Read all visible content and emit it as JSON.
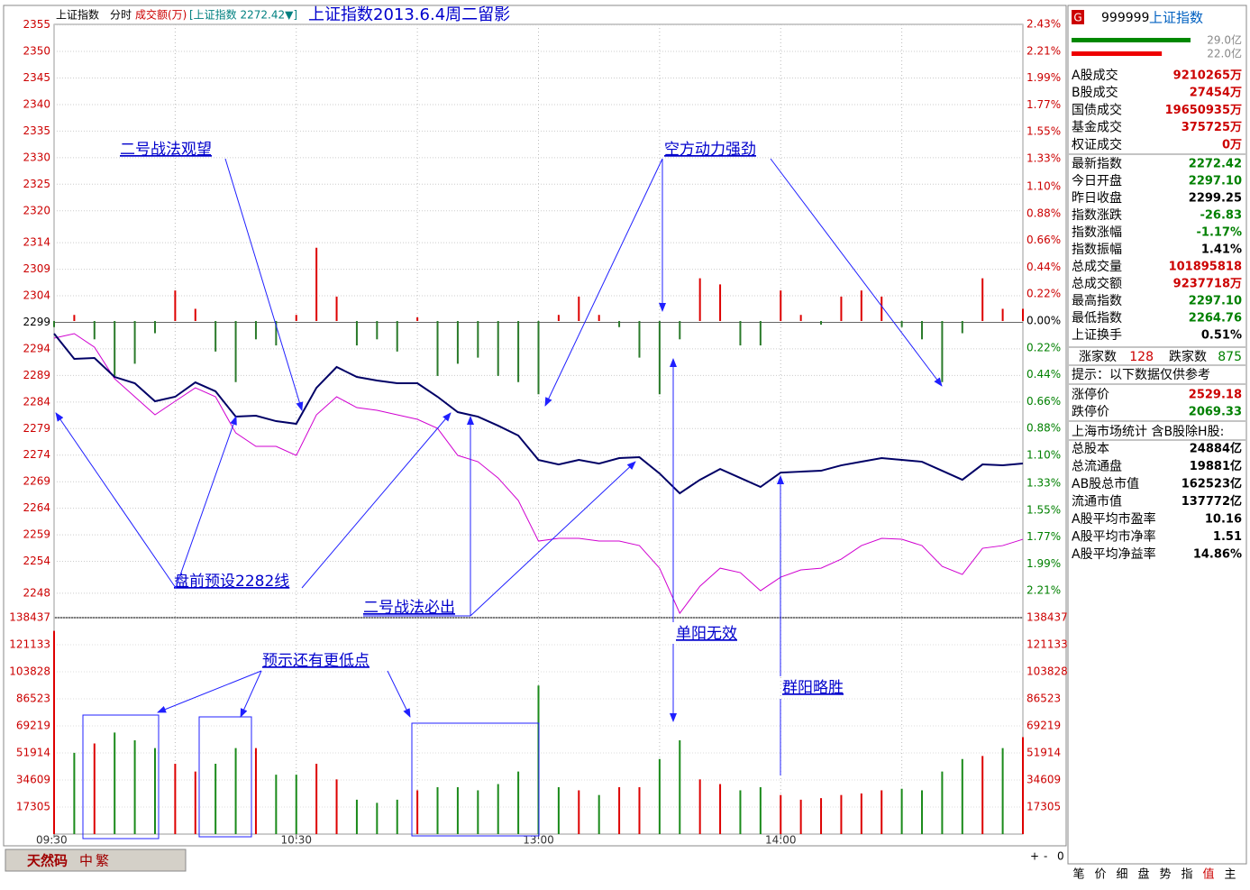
{
  "header": {
    "labels": [
      "上证指数",
      "分时",
      "成交额(万)"
    ],
    "quote": "[上证指数 2272.42▼]",
    "title": "上证指数2013.6.4周二留影"
  },
  "chart": {
    "type": "intraday",
    "xlim": [
      0,
      48
    ],
    "xticks": [
      {
        "value": 0,
        "label": "09:30"
      },
      {
        "value": 12,
        "label": "10:30"
      },
      {
        "value": 24,
        "label": "13:00"
      },
      {
        "value": 36,
        "label": "14:00"
      }
    ],
    "ylim": [
      2243.4,
      2355.1
    ],
    "yticks": [
      2355,
      2350,
      2345,
      2340,
      2335,
      2330,
      2325,
      2320,
      2314,
      2309,
      2304,
      2299,
      2294,
      2289,
      2284,
      2279,
      2274,
      2269,
      2264,
      2259,
      2254,
      2248
    ],
    "y2lim": [
      -2.43,
      2.43
    ],
    "y2ticks": [
      {
        "value": 2.43,
        "label": "2.43%"
      },
      {
        "value": 2.21,
        "label": "2.21%"
      },
      {
        "value": 1.99,
        "label": "1.99%"
      },
      {
        "value": 1.77,
        "label": "1.77%"
      },
      {
        "value": 1.55,
        "label": "1.55%"
      },
      {
        "value": 1.33,
        "label": "1.33%"
      },
      {
        "value": 1.1,
        "label": "1.10%"
      },
      {
        "value": 0.88,
        "label": "0.88%"
      },
      {
        "value": 0.66,
        "label": "0.66%"
      },
      {
        "value": 0.44,
        "label": "0.44%"
      },
      {
        "value": 0.22,
        "label": "0.22%"
      },
      {
        "value": 0,
        "label": "0.00%"
      },
      {
        "value": -0.22,
        "label": "0.22%"
      },
      {
        "value": -0.44,
        "label": "0.44%"
      },
      {
        "value": -0.66,
        "label": "0.66%"
      },
      {
        "value": -0.88,
        "label": "0.88%"
      },
      {
        "value": -1.1,
        "label": "1.10%"
      },
      {
        "value": -1.33,
        "label": "1.33%"
      },
      {
        "value": -1.55,
        "label": "1.55%"
      },
      {
        "value": -1.77,
        "label": "1.77%"
      },
      {
        "value": -1.99,
        "label": "1.99%"
      },
      {
        "value": -2.21,
        "label": "2.21%"
      }
    ],
    "vlim": [
      0,
      138437
    ],
    "vticks": [
      138437,
      121133,
      103828,
      86523,
      69219,
      51914,
      34609,
      17305
    ],
    "price": {
      "color": "#000066",
      "values": [
        2296.87,
        2292.12,
        2292.29,
        2288.72,
        2287.53,
        2284.14,
        2284.99,
        2287.7,
        2286.01,
        2281.25,
        2281.42,
        2280.4,
        2279.89,
        2286.68,
        2290.59,
        2288.72,
        2288.04,
        2287.53,
        2287.53,
        2284.99,
        2282.1,
        2281.25,
        2279.55,
        2277.69,
        2273.1,
        2272.25,
        2273.1,
        2272.42,
        2273.44,
        2273.61,
        2270.55,
        2266.82,
        2269.36,
        2271.4,
        2269.7,
        2268.01,
        2270.72,
        2270.89,
        2271.06,
        2272.08,
        2272.76,
        2273.44,
        2273.1,
        2272.76,
        2271.06,
        2269.36,
        2272.25,
        2272.08,
        2272.42
      ]
    },
    "average": {
      "color": "#d000d0",
      "values": [
        2296.02,
        2296.87,
        2294.33,
        2288.38,
        2284.99,
        2281.59,
        2284.14,
        2286.68,
        2284.99,
        2278.19,
        2275.65,
        2275.65,
        2273.95,
        2281.59,
        2284.99,
        2282.95,
        2282.44,
        2281.59,
        2280.74,
        2279.04,
        2273.95,
        2272.76,
        2269.7,
        2265.46,
        2257.82,
        2258.33,
        2258.33,
        2257.82,
        2257.82,
        2256.97,
        2252.72,
        2244.23,
        2249.33,
        2252.72,
        2251.88,
        2248.48,
        2251.03,
        2252.39,
        2252.72,
        2254.42,
        2256.97,
        2258.33,
        2258.16,
        2256.97,
        2253.06,
        2251.54,
        2256.46,
        2256.97,
        2258.16
      ]
    },
    "strength": [
      -0.05,
      0.05,
      -0.15,
      -0.45,
      -0.35,
      -0.1,
      0.25,
      0.1,
      -0.25,
      -0.5,
      -0.15,
      -0.2,
      0.05,
      0.6,
      0.2,
      -0.2,
      -0.15,
      -0.25,
      0.03,
      -0.45,
      -0.35,
      -0.3,
      -0.45,
      -0.5,
      -0.6,
      0.05,
      0.2,
      0.05,
      -0.05,
      -0.3,
      -0.6,
      -0.15,
      0.35,
      0.3,
      -0.2,
      -0.2,
      0.25,
      0.05,
      -0.03,
      0.2,
      0.25,
      0.2,
      -0.05,
      -0.15,
      -0.5,
      -0.1,
      0.35,
      0.1,
      0.1
    ],
    "volume": [
      130000,
      52000,
      58000,
      65000,
      60000,
      55000,
      45000,
      40000,
      45000,
      55000,
      55000,
      38000,
      38000,
      45000,
      35000,
      22000,
      20000,
      22000,
      28000,
      30000,
      30000,
      28000,
      32000,
      40000,
      95000,
      30000,
      28000,
      25000,
      30000,
      30000,
      48000,
      60000,
      35000,
      32000,
      28000,
      30000,
      25000,
      22000,
      23000,
      25000,
      26000,
      28000,
      29000,
      28000,
      40000,
      48000,
      50000,
      55000,
      62000
    ],
    "annotations": [
      "二号战法观望",
      "空方动力强劲",
      "盘前预设2282线",
      "二号战法必出",
      "单阳无效",
      "预示还有更低点",
      "群阳略胜"
    ]
  },
  "panel": {
    "code": "999999",
    "name": "上证指数",
    "badge": "G",
    "bars": [
      {
        "value": 29.0,
        "label": "29.0亿"
      },
      {
        "value": 22.0,
        "label": "22.0亿"
      }
    ],
    "turnover": [
      {
        "label": "A股成交",
        "value": "9210265万"
      },
      {
        "label": "B股成交",
        "value": "27454万"
      },
      {
        "label": "国债成交",
        "value": "19650935万"
      },
      {
        "label": "基金成交",
        "value": "375725万"
      },
      {
        "label": "权证成交",
        "value": "0万"
      }
    ],
    "quote": [
      {
        "label": "最新指数",
        "value": "2272.42",
        "color": "#008000"
      },
      {
        "label": "今日开盘",
        "value": "2297.10",
        "color": "#008000"
      },
      {
        "label": "昨日收盘",
        "value": "2299.25",
        "color": "#000000"
      },
      {
        "label": "指数涨跌",
        "value": "-26.83",
        "color": "#008000"
      },
      {
        "label": "指数涨幅",
        "value": "-1.17%",
        "color": "#008000"
      },
      {
        "label": "指数振幅",
        "value": "1.41%",
        "color": "#000000"
      },
      {
        "label": "总成交量",
        "value": "101895818",
        "color": "#cc0000"
      },
      {
        "label": "总成交额",
        "value": "9237718万",
        "color": "#cc0000"
      },
      {
        "label": "最高指数",
        "value": "2297.10",
        "color": "#008000"
      },
      {
        "label": "最低指数",
        "value": "2264.76",
        "color": "#008000"
      },
      {
        "label": "上证换手",
        "value": "0.51%",
        "color": "#000000"
      }
    ],
    "breadth": {
      "up_label": "涨家数",
      "up": "128",
      "down_label": "跌家数",
      "down": "875"
    },
    "hint": "提示：以下数据仅供参考",
    "limits": [
      {
        "label": "涨停价",
        "value": "2529.18",
        "color": "#cc0000"
      },
      {
        "label": "跌停价",
        "value": "2069.33",
        "color": "#008000"
      }
    ],
    "stats_title": "上海市场统计 含B股除H股:",
    "stats": [
      {
        "label": "总股本",
        "value": "24884亿"
      },
      {
        "label": "总流通盘",
        "value": "19881亿"
      },
      {
        "label": "AB股总市值",
        "value": "162523亿"
      },
      {
        "label": "流通市值",
        "value": "137772亿"
      },
      {
        "label": "A股平均市盈率",
        "value": "10.16"
      },
      {
        "label": "A股平均市净率",
        "value": "1.51"
      },
      {
        "label": "A股平均净益率",
        "value": "14.86%"
      }
    ],
    "tabs": [
      "笔",
      "价",
      "细",
      "盘",
      "势",
      "指",
      "值",
      "主"
    ]
  },
  "toolbar": {
    "ime": "天然码",
    "buttons": [
      "中",
      "繁"
    ],
    "zoom": [
      "+",
      "-",
      "0"
    ]
  }
}
